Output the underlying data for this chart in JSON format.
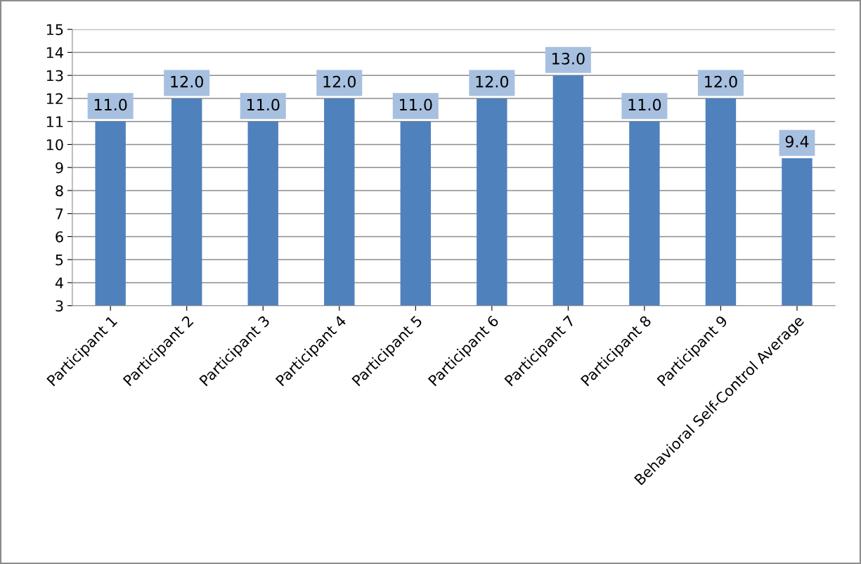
{
  "chart_data": {
    "type": "bar",
    "categories": [
      "Participant 1",
      "Participant 2",
      "Participant 3",
      "Participant 4",
      "Participant 5",
      "Participant 6",
      "Participant 7",
      "Participant 8",
      "Participant 9",
      "Behavioral Self-Control Average"
    ],
    "values": [
      11,
      12,
      11,
      12,
      11,
      12,
      13,
      11,
      12,
      9.4
    ],
    "value_labels": [
      "11.0",
      "12.0",
      "11.0",
      "12.0",
      "11.0",
      "12.0",
      "13.0",
      "11.0",
      "12.0",
      "9.4"
    ],
    "color": "#4f81bd",
    "ylim": [
      3,
      15
    ],
    "yticks": [
      3,
      4,
      5,
      6,
      7,
      8,
      9,
      10,
      11,
      12,
      13,
      14,
      15
    ],
    "grid": "y",
    "legend": false
  }
}
